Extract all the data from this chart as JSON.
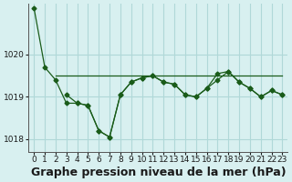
{
  "xlabel": "Graphe pression niveau de la mer (hPa)",
  "background_color": "#d8f0f0",
  "grid_color": "#b0d8d8",
  "line_color": "#1a5c1a",
  "ylim": [
    1017.7,
    1021.2
  ],
  "xlim": [
    -0.5,
    23.5
  ],
  "yticks": [
    1018,
    1019,
    1020
  ],
  "xticks": [
    0,
    1,
    2,
    3,
    4,
    5,
    6,
    7,
    8,
    9,
    10,
    11,
    12,
    13,
    14,
    15,
    16,
    17,
    18,
    19,
    20,
    21,
    22,
    23
  ],
  "series1_x": [
    0,
    1,
    2,
    3,
    4,
    5,
    6,
    7,
    8,
    9,
    10,
    11,
    12,
    13,
    14,
    15,
    16,
    17,
    18,
    19,
    20,
    21,
    22,
    23
  ],
  "series1_y": [
    1021.1,
    1019.7,
    1019.4,
    1018.85,
    1018.85,
    1018.8,
    1018.2,
    1018.05,
    1019.05,
    1019.35,
    1019.45,
    1019.5,
    1019.35,
    1019.3,
    1019.05,
    1019.0,
    1019.2,
    1019.4,
    1019.6,
    1019.35,
    1019.2,
    1019.0,
    1019.15,
    1019.05
  ],
  "series2_x": [
    2,
    3,
    4,
    5,
    6,
    7,
    8,
    9,
    10,
    11,
    12,
    13,
    14,
    15,
    16,
    17,
    18,
    19,
    20,
    21,
    22,
    23
  ],
  "series2_y": [
    1019.5,
    1019.5,
    1019.5,
    1019.5,
    1019.5,
    1019.5,
    1019.5,
    1019.5,
    1019.5,
    1019.5,
    1019.5,
    1019.5,
    1019.5,
    1019.5,
    1019.5,
    1019.5,
    1019.5,
    1019.5,
    1019.5,
    1019.5,
    1019.5,
    1019.5
  ],
  "series3_x": [
    3,
    4,
    5,
    6,
    7,
    8,
    9,
    10,
    11,
    12,
    13,
    14,
    15,
    16,
    17,
    18,
    19,
    20,
    21,
    22,
    23
  ],
  "series3_y": [
    1019.05,
    1018.85,
    1018.8,
    1018.2,
    1018.05,
    1019.05,
    1019.35,
    1019.45,
    1019.5,
    1019.35,
    1019.3,
    1019.05,
    1019.0,
    1019.2,
    1019.55,
    1019.6,
    1019.35,
    1019.2,
    1019.0,
    1019.15,
    1019.05
  ],
  "xlabel_fontsize": 9,
  "tick_fontsize": 6.5
}
